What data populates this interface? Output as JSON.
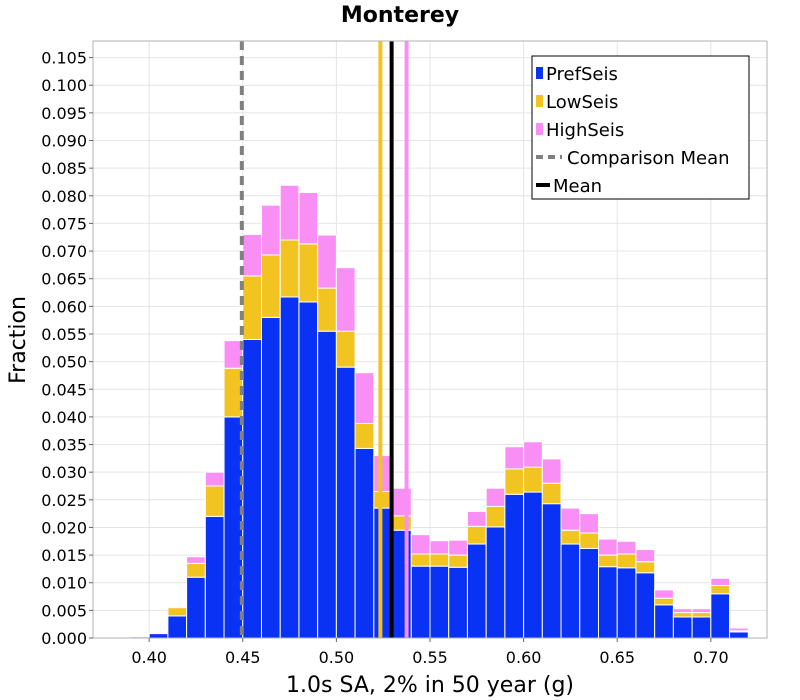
{
  "chart_data": {
    "type": "bar",
    "stacked": true,
    "title": "Monterey",
    "xlabel": "1.0s SA, 2% in 50 year (g)",
    "ylabel": "Fraction",
    "xlim": [
      0.37,
      0.73
    ],
    "ylim": [
      0.0,
      0.108
    ],
    "bin_width": 0.01,
    "grid": true,
    "legend_position": "top-right",
    "xticks": [
      "0.40",
      "0.45",
      "0.50",
      "0.55",
      "0.60",
      "0.65",
      "0.70"
    ],
    "yticks": [
      "0.000",
      "0.005",
      "0.010",
      "0.015",
      "0.020",
      "0.025",
      "0.030",
      "0.035",
      "0.040",
      "0.045",
      "0.050",
      "0.055",
      "0.060",
      "0.065",
      "0.070",
      "0.075",
      "0.080",
      "0.085",
      "0.090",
      "0.095",
      "0.100",
      "0.105"
    ],
    "bin_centers": [
      0.395,
      0.405,
      0.415,
      0.425,
      0.435,
      0.445,
      0.455,
      0.465,
      0.475,
      0.485,
      0.495,
      0.505,
      0.515,
      0.525,
      0.535,
      0.545,
      0.555,
      0.565,
      0.575,
      0.585,
      0.595,
      0.605,
      0.615,
      0.625,
      0.635,
      0.645,
      0.655,
      0.665,
      0.675,
      0.685,
      0.695,
      0.705,
      0.715
    ],
    "series": [
      {
        "name": "PrefSeis",
        "color": "#0a32f5",
        "values": [
          0.0002,
          0.0008,
          0.004,
          0.011,
          0.022,
          0.04,
          0.054,
          0.058,
          0.0617,
          0.0608,
          0.0555,
          0.049,
          0.0343,
          0.0235,
          0.0195,
          0.013,
          0.013,
          0.0128,
          0.017,
          0.0201,
          0.026,
          0.0264,
          0.0243,
          0.017,
          0.0162,
          0.0129,
          0.0127,
          0.0118,
          0.006,
          0.0038,
          0.0038,
          0.008,
          0.0011
        ]
      },
      {
        "name": "LowSeis",
        "color": "#f2c422",
        "values": [
          0.0,
          0.0002,
          0.0015,
          0.0025,
          0.0055,
          0.0088,
          0.0115,
          0.0113,
          0.0103,
          0.0105,
          0.0078,
          0.0065,
          0.0045,
          0.003,
          0.0026,
          0.0022,
          0.0022,
          0.0022,
          0.0032,
          0.0037,
          0.0046,
          0.0045,
          0.0037,
          0.0025,
          0.0028,
          0.0021,
          0.0025,
          0.002,
          0.0012,
          0.0008,
          0.0008,
          0.0015,
          0.0002
        ]
      },
      {
        "name": "HighSeis",
        "color": "#f98ff5",
        "values": [
          0.0,
          0.0,
          0.0002,
          0.0012,
          0.0025,
          0.005,
          0.0075,
          0.009,
          0.0099,
          0.0093,
          0.0096,
          0.0115,
          0.0092,
          0.0065,
          0.005,
          0.0035,
          0.0024,
          0.0027,
          0.0027,
          0.0033,
          0.004,
          0.0046,
          0.0044,
          0.004,
          0.0035,
          0.0029,
          0.0023,
          0.0022,
          0.0015,
          0.0007,
          0.0007,
          0.0013,
          0.0005
        ]
      }
    ],
    "vlines": [
      {
        "name": "Comparison Mean",
        "x": 0.4495,
        "color": "#808080",
        "style": "dashed"
      },
      {
        "name": "Mean",
        "x": 0.5295,
        "color": "#000000",
        "style": "solid"
      },
      {
        "name": "LowSeis mean",
        "x": 0.5235,
        "color": "#f2c422",
        "style": "solid"
      },
      {
        "name": "HighSeis mean",
        "x": 0.5375,
        "color": "#f98ff5",
        "style": "solid"
      }
    ],
    "legend": [
      {
        "label": "PrefSeis",
        "kind": "box",
        "color": "#0a32f5"
      },
      {
        "label": "LowSeis",
        "kind": "box",
        "color": "#f2c422"
      },
      {
        "label": "HighSeis",
        "kind": "box",
        "color": "#f98ff5"
      },
      {
        "label": "Comparison Mean",
        "kind": "dashed",
        "color": "#808080"
      },
      {
        "label": "Mean",
        "kind": "solid",
        "color": "#000000"
      }
    ]
  }
}
